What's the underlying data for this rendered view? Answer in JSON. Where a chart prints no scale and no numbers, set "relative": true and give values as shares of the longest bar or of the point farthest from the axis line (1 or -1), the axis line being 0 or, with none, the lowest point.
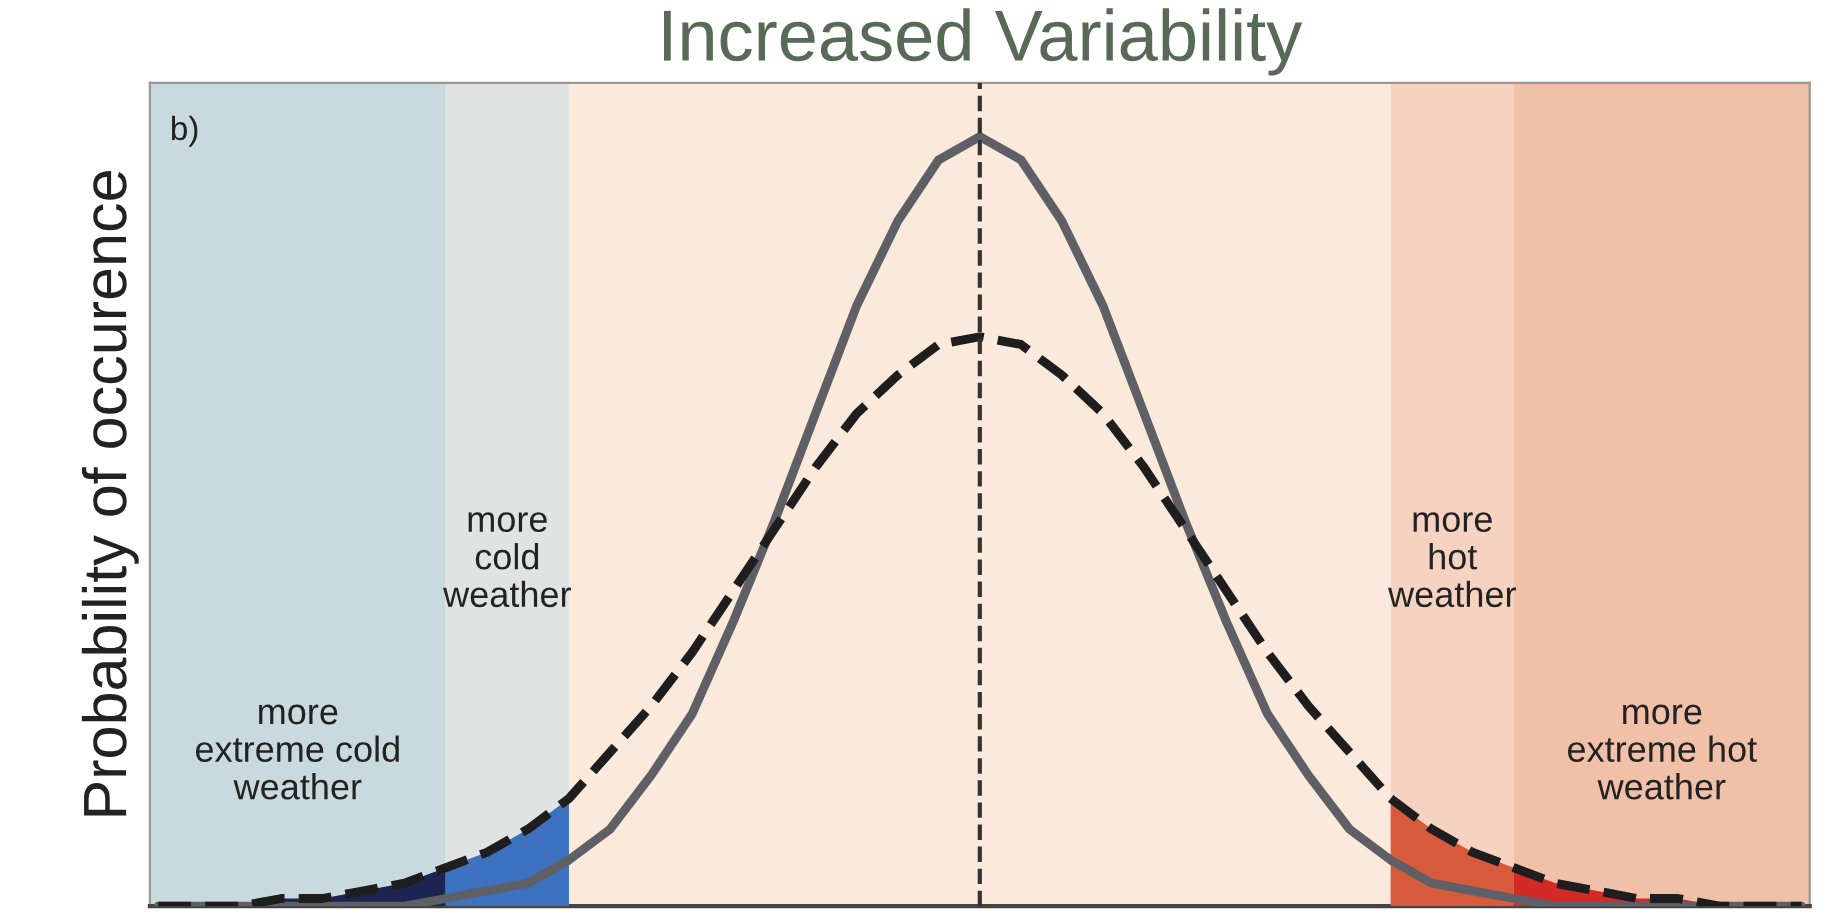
{
  "chart_data": {
    "type": "line",
    "title": "Increased Variability",
    "ylabel": "Probability of occurence",
    "relative": true,
    "categories": [
      null,
      null,
      null,
      null,
      null,
      null,
      null,
      null,
      null,
      null,
      null,
      null,
      null,
      null,
      null,
      null,
      null,
      null,
      null,
      null,
      null,
      null,
      null,
      null,
      null,
      null,
      null,
      null,
      null,
      null,
      null,
      null,
      null,
      null,
      null,
      null,
      null,
      null,
      null,
      null,
      null
    ],
    "series": [
      {
        "color": "#5f5f66",
        "line_style": "solid",
        "values": [
          0,
          0,
          0,
          0,
          0,
          0,
          0,
          0.01,
          0.02,
          0.03,
          0.06,
          0.1,
          0.17,
          0.25,
          0.37,
          0.5,
          0.64,
          0.78,
          0.89,
          0.97,
          1,
          0.97,
          0.89,
          0.78,
          0.64,
          0.5,
          0.37,
          0.25,
          0.17,
          0.1,
          0.06,
          0.03,
          0.02,
          0.01,
          0,
          0,
          0,
          0,
          0,
          0,
          0
        ]
      },
      {
        "color": "#1e1e1e",
        "line_style": "dashed",
        "values": [
          0,
          0,
          0,
          0.01,
          0.01,
          0.02,
          0.03,
          0.05,
          0.07,
          0.1,
          0.14,
          0.2,
          0.26,
          0.33,
          0.41,
          0.49,
          0.57,
          0.64,
          0.69,
          0.73,
          0.74,
          0.73,
          0.69,
          0.64,
          0.57,
          0.49,
          0.41,
          0.33,
          0.26,
          0.2,
          0.14,
          0.1,
          0.07,
          0.05,
          0.03,
          0.02,
          0.01,
          0.01,
          0,
          0,
          0
        ]
      },
      {
        "type": "area",
        "color": "#1c2452",
        "values": [
          0,
          0,
          0,
          0.01,
          0.01,
          0.02,
          0.03,
          0.05,
          null,
          null,
          null,
          null,
          null,
          null,
          null,
          null,
          null,
          null,
          null,
          null,
          null,
          null,
          null,
          null,
          null,
          null,
          null,
          null,
          null,
          null,
          null,
          null,
          null,
          null,
          null,
          null,
          null,
          null,
          null,
          null,
          null
        ]
      },
      {
        "type": "area",
        "color": "#3d72c0",
        "values": [
          null,
          null,
          null,
          null,
          null,
          null,
          null,
          0.05,
          0.07,
          0.1,
          0.14,
          null,
          null,
          null,
          null,
          null,
          null,
          null,
          null,
          null,
          null,
          null,
          null,
          null,
          null,
          null,
          null,
          null,
          null,
          null,
          null,
          null,
          null,
          null,
          null,
          null,
          null,
          null,
          null,
          null,
          null
        ]
      },
      {
        "type": "area",
        "color": "#d85a3c",
        "values": [
          null,
          null,
          null,
          null,
          null,
          null,
          null,
          null,
          null,
          null,
          null,
          null,
          null,
          null,
          null,
          null,
          null,
          null,
          null,
          null,
          null,
          null,
          null,
          null,
          null,
          null,
          null,
          null,
          null,
          null,
          0.14,
          0.1,
          0.07,
          0.05,
          null,
          null,
          null,
          null,
          null,
          null,
          null
        ]
      },
      {
        "type": "area",
        "color": "#d42a26",
        "values": [
          null,
          null,
          null,
          null,
          null,
          null,
          null,
          null,
          null,
          null,
          null,
          null,
          null,
          null,
          null,
          null,
          null,
          null,
          null,
          null,
          null,
          null,
          null,
          null,
          null,
          null,
          null,
          null,
          null,
          null,
          null,
          null,
          null,
          0.05,
          0.03,
          0.02,
          0.01,
          0.01,
          0,
          0,
          0
        ]
      }
    ],
    "annotations": [
      "b)",
      "more\nextreme cold\nweather",
      "more\ncold\nweather",
      "more\nhot\nweather",
      "more\nextreme hot\nweather"
    ]
  }
}
